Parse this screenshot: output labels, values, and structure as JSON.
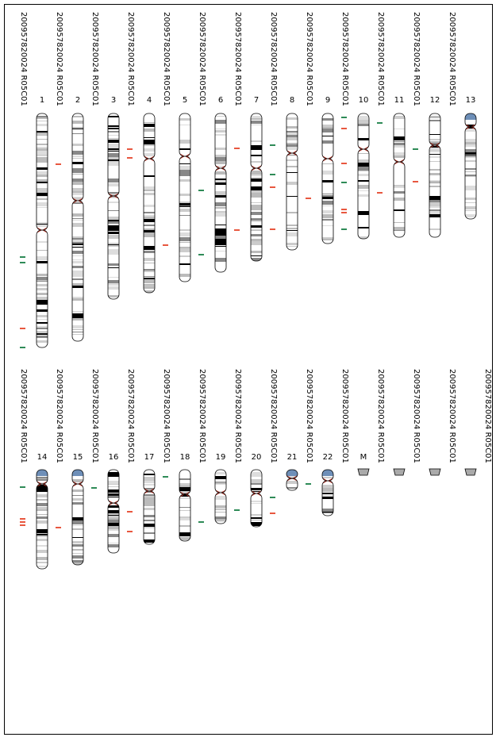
{
  "rows": [
    {
      "columns": [
        {
          "sample": "200957820024 R05C01",
          "label": "1"
        },
        {
          "sample": "200957820024 R05C01",
          "label": "2"
        },
        {
          "sample": "200957820024 R05C01",
          "label": "3"
        },
        {
          "sample": "200957820024 R05C01",
          "label": "4"
        },
        {
          "sample": "200957820024 R05C01",
          "label": "5"
        },
        {
          "sample": "200957820024 R05C01",
          "label": "6"
        },
        {
          "sample": "200957820024 R05C01",
          "label": "7"
        },
        {
          "sample": "200957820024 R05C01",
          "label": "8"
        },
        {
          "sample": "200957820024 R05C01",
          "label": "9"
        },
        {
          "sample": "200957820024 R05C01",
          "label": "10"
        },
        {
          "sample": "200957820024 R05C01",
          "label": "11"
        },
        {
          "sample": "200957820024 R05C01",
          "label": "12"
        },
        {
          "sample": "200957820024 R05C01",
          "label": "13"
        }
      ]
    },
    {
      "columns": [
        {
          "sample": "200957820024 R05C01",
          "label": "14"
        },
        {
          "sample": "200957820024 R05C01",
          "label": "15"
        },
        {
          "sample": "200957820024 R05C01",
          "label": "16"
        },
        {
          "sample": "200957820024 R05C01",
          "label": "17"
        },
        {
          "sample": "200957820024 R05C01",
          "label": "18"
        },
        {
          "sample": "200957820024 R05C01",
          "label": "19"
        },
        {
          "sample": "200957820024 R05C01",
          "label": "20"
        },
        {
          "sample": "200957820024 R05C01",
          "label": "21"
        },
        {
          "sample": "200957820024 R05C01",
          "label": "22"
        },
        {
          "sample": "200957820024 R05C01",
          "label": "M"
        },
        {
          "sample": "200957820024 R05C01"
        },
        {
          "sample": "200957820024 R05C01"
        },
        {
          "sample": "200957820024 R05C01"
        },
        {
          "sample": "200957820024 R05C01"
        }
      ]
    }
  ]
}
